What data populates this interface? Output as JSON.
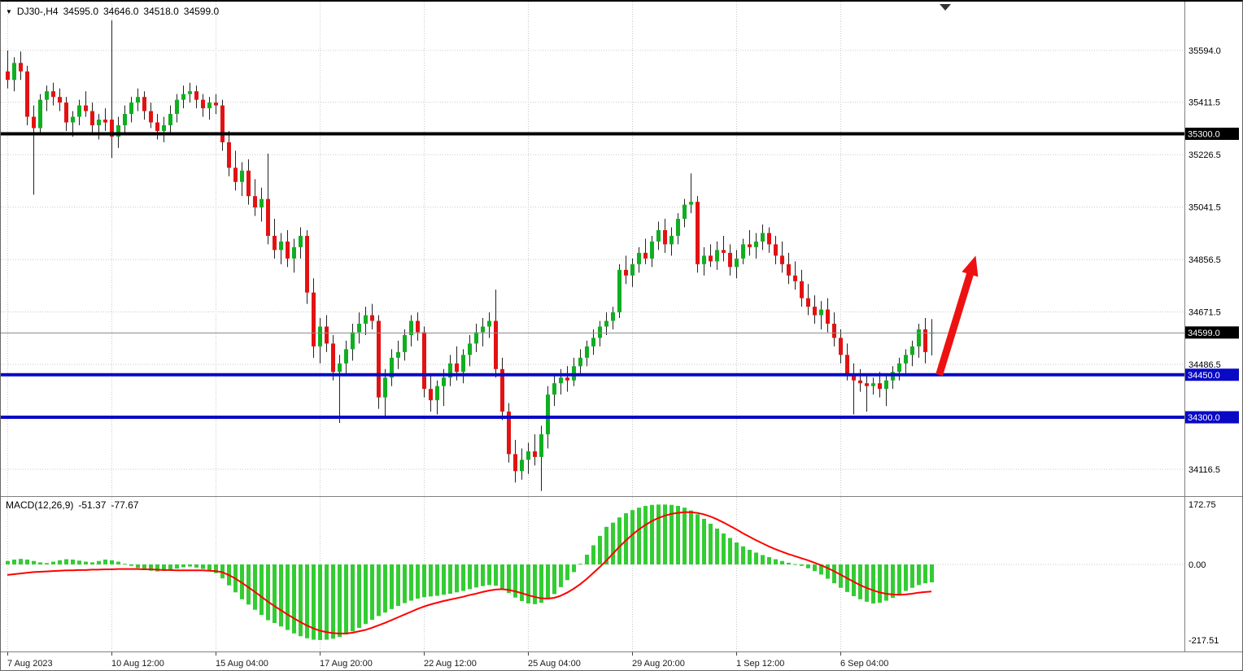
{
  "header": {
    "marker_icon": "▼",
    "symbol_period": "DJ30-,H4",
    "open": "34595.0",
    "high": "34646.0",
    "low": "34518.0",
    "close": "34599.0"
  },
  "macd_panel": {
    "label": "MACD(12,26,9)",
    "macd_value": "-51.37",
    "signal_value": "-77.67"
  },
  "colors": {
    "background": "#ffffff",
    "grid": "#c8c8c8",
    "bull": "#0faf20",
    "bear": "#e31212",
    "wick": "#222222",
    "macd_histogram": "#33cc33",
    "macd_signal": "#ff0000",
    "level_blue": "#0909c6",
    "level_black": "#000000",
    "badge_text": "#ffffff",
    "axis_text": "#000000",
    "time_text": "#1a1a1a",
    "arrow_red": "#ee1111",
    "current_price_line": "#888888",
    "separator": "#808080"
  },
  "chart_data": [
    {
      "type": "candlestick",
      "title": "DJ30-,H4",
      "symbol": "DJ30-",
      "timeframe": "H4",
      "current_price": 34599.0,
      "current_badge": "34599.0",
      "price_axis_labels": [
        35594.0,
        35411.5,
        35226.5,
        35041.5,
        34856.5,
        34671.5,
        34486.5,
        34116.5
      ],
      "hlines": [
        {
          "value": 35300.0,
          "label": "35300.0",
          "color": "#000000",
          "width": 4
        },
        {
          "value": 34450.0,
          "label": "34450.0",
          "color": "#0909c6",
          "width": 4
        },
        {
          "value": 34300.0,
          "label": "34300.0",
          "color": "#0909c6",
          "width": 4
        }
      ],
      "x_ticks": [
        {
          "bar": 0,
          "label": "7 Aug 2023"
        },
        {
          "bar": 16,
          "label": "10 Aug 12:00"
        },
        {
          "bar": 32,
          "label": "15 Aug 04:00"
        },
        {
          "bar": 48,
          "label": "17 Aug 20:00"
        },
        {
          "bar": 64,
          "label": "22 Aug 12:00"
        },
        {
          "bar": 80,
          "label": "25 Aug 04:00"
        },
        {
          "bar": 96,
          "label": "29 Aug 20:00"
        },
        {
          "bar": 112,
          "label": "1 Sep 12:00"
        },
        {
          "bar": 128,
          "label": "6 Sep 04:00"
        }
      ],
      "arrow": {
        "from_bar": 143.2,
        "from_price": 34450,
        "to_bar": 148.8,
        "to_price": 34870,
        "color": "#ee1111"
      },
      "ohlc": [
        [
          35520,
          35594,
          35460,
          35490
        ],
        [
          35490,
          35570,
          35450,
          35550
        ],
        [
          35550,
          35590,
          35490,
          35520
        ],
        [
          35520,
          35540,
          35330,
          35360
        ],
        [
          35360,
          35400,
          35085,
          35320
        ],
        [
          35320,
          35440,
          35300,
          35420
        ],
        [
          35420,
          35470,
          35380,
          35450
        ],
        [
          35450,
          35480,
          35400,
          35430
        ],
        [
          35430,
          35460,
          35380,
          35410
        ],
        [
          35410,
          35430,
          35310,
          35340
        ],
        [
          35340,
          35380,
          35290,
          35360
        ],
        [
          35360,
          35420,
          35330,
          35400
        ],
        [
          35400,
          35450,
          35360,
          35380
        ],
        [
          35380,
          35410,
          35300,
          35330
        ],
        [
          35330,
          35370,
          35280,
          35350
        ],
        [
          35350,
          35390,
          35310,
          35340
        ],
        [
          35350,
          35700,
          35215,
          35290
        ],
        [
          35290,
          35360,
          35250,
          35330
        ],
        [
          35330,
          35400,
          35300,
          35370
        ],
        [
          35370,
          35430,
          35340,
          35410
        ],
        [
          35410,
          35460,
          35380,
          35430
        ],
        [
          35430,
          35450,
          35350,
          35380
        ],
        [
          35380,
          35410,
          35320,
          35340
        ],
        [
          35340,
          35370,
          35280,
          35310
        ],
        [
          35310,
          35360,
          35270,
          35330
        ],
        [
          35330,
          35400,
          35300,
          35370
        ],
        [
          35370,
          35440,
          35340,
          35420
        ],
        [
          35420,
          35470,
          35390,
          35440
        ],
        [
          35440,
          35480,
          35410,
          35450
        ],
        [
          35450,
          35470,
          35390,
          35420
        ],
        [
          35420,
          35440,
          35360,
          35390
        ],
        [
          35390,
          35430,
          35350,
          35410
        ],
        [
          35410,
          35440,
          35370,
          35400
        ],
        [
          35400,
          35420,
          35240,
          35270
        ],
        [
          35270,
          35310,
          35150,
          35180
        ],
        [
          35180,
          35240,
          35100,
          35130
        ],
        [
          35130,
          35200,
          35080,
          35170
        ],
        [
          35170,
          35210,
          35050,
          35080
        ],
        [
          35080,
          35140,
          35010,
          35040
        ],
        [
          35040,
          35110,
          34990,
          35070
        ],
        [
          35070,
          35230,
          34910,
          34940
        ],
        [
          34940,
          35000,
          34860,
          34890
        ],
        [
          34890,
          34950,
          34840,
          34920
        ],
        [
          34920,
          34960,
          34830,
          34860
        ],
        [
          34860,
          34930,
          34810,
          34900
        ],
        [
          34900,
          34970,
          34860,
          34940
        ],
        [
          34940,
          34960,
          34700,
          34740
        ],
        [
          34740,
          34790,
          34510,
          34550
        ],
        [
          34550,
          34650,
          34490,
          34620
        ],
        [
          34620,
          34660,
          34530,
          34560
        ],
        [
          34560,
          34590,
          34430,
          34460
        ],
        [
          34460,
          34520,
          34280,
          34490
        ],
        [
          34490,
          34570,
          34450,
          34540
        ],
        [
          34540,
          34630,
          34500,
          34600
        ],
        [
          34600,
          34670,
          34560,
          34630
        ],
        [
          34630,
          34690,
          34590,
          34660
        ],
        [
          34660,
          34700,
          34610,
          34640
        ],
        [
          34640,
          34660,
          34330,
          34370
        ],
        [
          34370,
          34470,
          34300,
          34440
        ],
        [
          34440,
          34540,
          34410,
          34510
        ],
        [
          34510,
          34570,
          34470,
          34530
        ],
        [
          34530,
          34610,
          34500,
          34590
        ],
        [
          34590,
          34660,
          34550,
          34640
        ],
        [
          34640,
          34670,
          34570,
          34600
        ],
        [
          34600,
          34620,
          34370,
          34400
        ],
        [
          34400,
          34450,
          34320,
          34360
        ],
        [
          34360,
          34430,
          34310,
          34410
        ],
        [
          34410,
          34470,
          34340,
          34440
        ],
        [
          34440,
          34520,
          34410,
          34490
        ],
        [
          34490,
          34550,
          34430,
          34460
        ],
        [
          34460,
          34540,
          34420,
          34520
        ],
        [
          34520,
          34590,
          34480,
          34560
        ],
        [
          34560,
          34630,
          34530,
          34600
        ],
        [
          34600,
          34650,
          34550,
          34620
        ],
        [
          34620,
          34670,
          34580,
          34640
        ],
        [
          34640,
          34750,
          34440,
          34470
        ],
        [
          34470,
          34510,
          34290,
          34320
        ],
        [
          34320,
          34350,
          34140,
          34170
        ],
        [
          34170,
          34220,
          34070,
          34110
        ],
        [
          34110,
          34190,
          34080,
          34150
        ],
        [
          34150,
          34210,
          34100,
          34180
        ],
        [
          34180,
          34240,
          34130,
          34160
        ],
        [
          34160,
          34270,
          34040,
          34240
        ],
        [
          34240,
          34410,
          34190,
          34380
        ],
        [
          34380,
          34450,
          34340,
          34420
        ],
        [
          34420,
          34470,
          34380,
          34440
        ],
        [
          34440,
          34480,
          34390,
          34430
        ],
        [
          34430,
          34510,
          34410,
          34480
        ],
        [
          34480,
          34540,
          34450,
          34510
        ],
        [
          34510,
          34570,
          34480,
          34550
        ],
        [
          34550,
          34610,
          34520,
          34580
        ],
        [
          34580,
          34640,
          34550,
          34620
        ],
        [
          34620,
          34670,
          34590,
          34640
        ],
        [
          34640,
          34690,
          34610,
          34670
        ],
        [
          34670,
          34840,
          34650,
          34820
        ],
        [
          34820,
          34870,
          34770,
          34800
        ],
        [
          34800,
          34860,
          34760,
          34840
        ],
        [
          34840,
          34900,
          34810,
          34880
        ],
        [
          34880,
          34930,
          34840,
          34860
        ],
        [
          34860,
          34940,
          34830,
          34920
        ],
        [
          34920,
          34990,
          34890,
          34960
        ],
        [
          34960,
          35000,
          34880,
          34910
        ],
        [
          34910,
          34970,
          34870,
          34940
        ],
        [
          34940,
          35020,
          34910,
          35000
        ],
        [
          35000,
          35070,
          34970,
          35050
        ],
        [
          35050,
          35160,
          35020,
          35060
        ],
        [
          35060,
          35080,
          34810,
          34840
        ],
        [
          34840,
          34900,
          34800,
          34870
        ],
        [
          34870,
          34910,
          34830,
          34850
        ],
        [
          34850,
          34920,
          34820,
          34890
        ],
        [
          34890,
          34940,
          34850,
          34880
        ],
        [
          34880,
          34910,
          34800,
          34830
        ],
        [
          34830,
          34890,
          34790,
          34860
        ],
        [
          34860,
          34930,
          34840,
          34910
        ],
        [
          34910,
          34960,
          34870,
          34900
        ],
        [
          34900,
          34950,
          34860,
          34920
        ],
        [
          34920,
          34980,
          34890,
          34950
        ],
        [
          34950,
          34970,
          34880,
          34910
        ],
        [
          34910,
          34940,
          34840,
          34870
        ],
        [
          34870,
          34920,
          34810,
          34840
        ],
        [
          34840,
          34880,
          34770,
          34800
        ],
        [
          34800,
          34850,
          34750,
          34780
        ],
        [
          34780,
          34820,
          34690,
          34720
        ],
        [
          34720,
          34770,
          34660,
          34690
        ],
        [
          34690,
          34730,
          34630,
          34660
        ],
        [
          34660,
          34710,
          34610,
          34680
        ],
        [
          34680,
          34720,
          34600,
          34630
        ],
        [
          34630,
          34670,
          34550,
          34580
        ],
        [
          34580,
          34610,
          34490,
          34520
        ],
        [
          34520,
          34560,
          34430,
          34450
        ],
        [
          34450,
          34490,
          34310,
          34430
        ],
        [
          34430,
          34470,
          34390,
          34420
        ],
        [
          34420,
          34450,
          34320,
          34410
        ],
        [
          34410,
          34440,
          34380,
          34420
        ],
        [
          34420,
          34460,
          34370,
          34400
        ],
        [
          34400,
          34450,
          34340,
          34430
        ],
        [
          34430,
          34480,
          34400,
          34460
        ],
        [
          34460,
          34510,
          34430,
          34490
        ],
        [
          34490,
          34540,
          34450,
          34520
        ],
        [
          34520,
          34570,
          34480,
          34550
        ],
        [
          34550,
          34630,
          34510,
          34610
        ],
        [
          34610,
          34650,
          34490,
          34530
        ],
        [
          34595,
          34646,
          34518,
          34599
        ]
      ]
    },
    {
      "type": "bar",
      "name": "MACD(12,26,9)",
      "ylim": [
        -217.51,
        172.75
      ],
      "axis_labels": [
        {
          "value": 172.75,
          "text": "172.75"
        },
        {
          "value": 0,
          "text": "0.00"
        },
        {
          "value": -217.51,
          "text": "-217.51"
        }
      ],
      "values": [
        10,
        14,
        16,
        14,
        10,
        6,
        4,
        8,
        12,
        15,
        14,
        11,
        8,
        6,
        10,
        14,
        12,
        8,
        2,
        -4,
        -10,
        -15,
        -18,
        -20,
        -18,
        -15,
        -12,
        -8,
        -6,
        -9,
        -13,
        -18,
        -25,
        -40,
        -60,
        -80,
        -100,
        -115,
        -130,
        -145,
        -160,
        -168,
        -178,
        -188,
        -198,
        -206,
        -212,
        -216,
        -217,
        -216,
        -213,
        -208,
        -201,
        -192,
        -182,
        -171,
        -159,
        -148,
        -138,
        -128,
        -119,
        -111,
        -104,
        -98,
        -94,
        -92,
        -90,
        -87,
        -84,
        -80,
        -76,
        -71,
        -66,
        -62,
        -59,
        -61,
        -70,
        -82,
        -95,
        -105,
        -112,
        -114,
        -110,
        -100,
        -85,
        -65,
        -45,
        -22,
        2,
        28,
        55,
        82,
        108,
        120,
        135,
        147,
        156,
        163,
        168,
        171,
        172,
        172,
        171,
        168,
        163,
        155,
        144,
        131,
        117,
        103,
        89,
        76,
        63,
        52,
        42,
        34,
        27,
        21,
        15,
        10,
        5,
        1,
        -4,
        -11,
        -19,
        -29,
        -41,
        -54,
        -67,
        -79,
        -91,
        -100,
        -107,
        -112,
        -110,
        -104,
        -96,
        -86,
        -76,
        -67,
        -59,
        -54,
        -51.37
      ],
      "signal": [
        -30,
        -28,
        -26,
        -24,
        -22,
        -21,
        -20,
        -19,
        -18,
        -17,
        -17,
        -16,
        -16,
        -15,
        -15,
        -14,
        -14,
        -13,
        -13,
        -13,
        -13,
        -14,
        -14,
        -15,
        -16,
        -16,
        -17,
        -17,
        -17,
        -17,
        -17,
        -18,
        -19,
        -22,
        -30,
        -40,
        -52,
        -65,
        -78,
        -92,
        -106,
        -119,
        -131,
        -143,
        -154,
        -165,
        -175,
        -183,
        -190,
        -194,
        -197,
        -198,
        -198,
        -196,
        -192,
        -188,
        -182,
        -175,
        -168,
        -160,
        -152,
        -144,
        -136,
        -128,
        -121,
        -115,
        -110,
        -105,
        -101,
        -97,
        -93,
        -88,
        -84,
        -79,
        -75,
        -72,
        -71,
        -73,
        -77,
        -82,
        -88,
        -93,
        -97,
        -98,
        -96,
        -90,
        -81,
        -70,
        -57,
        -42,
        -25,
        -8,
        10,
        30,
        50,
        68,
        85,
        100,
        113,
        124,
        133,
        140,
        145,
        148,
        150,
        150,
        148,
        144,
        138,
        130,
        121,
        111,
        101,
        90,
        80,
        70,
        61,
        52,
        44,
        37,
        30,
        24,
        18,
        12,
        5,
        -2,
        -10,
        -19,
        -29,
        -39,
        -49,
        -59,
        -67,
        -74,
        -80,
        -84,
        -86,
        -87,
        -86,
        -84,
        -81,
        -79,
        -77.67
      ]
    }
  ]
}
